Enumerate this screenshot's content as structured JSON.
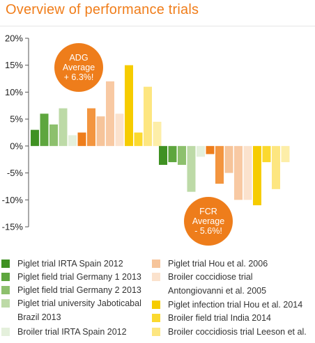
{
  "title": "Overview of performance trials",
  "badges": {
    "adg": [
      "ADG",
      "Average",
      "+ 6.3%!"
    ],
    "fcr": [
      "FCR",
      "Average",
      "- 5.6%!"
    ]
  },
  "legend": [
    {
      "name": "Piglet trial IRTA Spain 2012",
      "color": "#3f9122"
    },
    {
      "name": "Piglet field trial Germany 1 2013",
      "color": "#5ea63e"
    },
    {
      "name": "Piglet field trial Germany 2 2013",
      "color": "#8dc06d"
    },
    {
      "name": "Piglet trial university Jaboticabal",
      "cont": "Brazil 2013",
      "color": "#bddaa7"
    },
    {
      "name": "Broiler trial IRTA Spain 2012",
      "color": "#e4f0dc"
    },
    {
      "name": "Piglet trial Hou et al. 2006",
      "color": "#f6c49a"
    },
    {
      "name": "Broiler coccidiose trial",
      "cont": "Antongiovanni et al. 2005",
      "color": "#fbe2cd"
    },
    {
      "name": "Piglet infection trial Hou et al. 2014",
      "color": "#f6cc00"
    },
    {
      "name": "Broiler field trial India 2014",
      "color": "#fbd92e"
    },
    {
      "name": "Broiler coccidiosis trial Leeson et al.",
      "color": "#fde680"
    }
  ],
  "chart_data": {
    "type": "bar",
    "title": "Overview of performance trials",
    "ylim": [
      -15,
      20
    ],
    "yticks": [
      20,
      15,
      10,
      5,
      0,
      -5,
      -10,
      -15
    ],
    "tick_suffix": "%",
    "grid": false,
    "groups": [
      {
        "name": "ADG",
        "values": [
          3,
          6,
          4,
          7,
          2,
          2.5,
          7,
          5.5,
          12,
          6,
          15,
          2.5,
          11,
          4.5
        ]
      },
      {
        "name": "FCR",
        "values": [
          -3.5,
          -3,
          -3.5,
          -8.5,
          -2,
          -1.5,
          -7,
          -5,
          -10,
          -10,
          -11,
          -3,
          -8,
          -3
        ]
      }
    ],
    "bar_colors": [
      "#3f9122",
      "#5ea63e",
      "#8dc06d",
      "#bddaa7",
      "#e4f0dc",
      "#ee7d1b",
      "#f3953f",
      "#f6c49a",
      "#f8c9a3",
      "#fbe2cd",
      "#f6cc00",
      "#fbd92e",
      "#fde680",
      "#fdeea8"
    ]
  }
}
